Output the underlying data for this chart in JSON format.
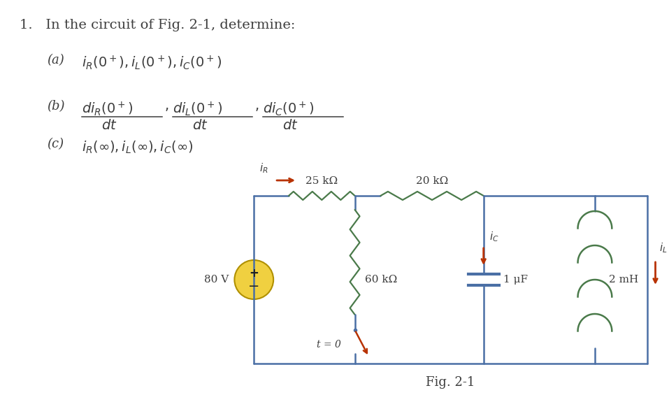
{
  "bg_color": "#ffffff",
  "text_color": "#3d3d3d",
  "circuit_color": "#4a6fa5",
  "resistor_color": "#4a7a4a",
  "component_red": "#b83200",
  "title_text": "1.   In the circuit of Fig. 2-1, determine:",
  "part_a_label": "(a)",
  "part_b_label": "(b)",
  "part_c_label": "(c)",
  "fig_label": "Fig. 2-1",
  "voltage_label": "80 V",
  "r1_label": "25 kΩ",
  "r2_label": "20 kΩ",
  "r3_label": "60 kΩ",
  "cap_label": "1 μF",
  "ind_label": "2 mH",
  "t0_label": "t = 0",
  "iR_label": "i_R",
  "iC_label": "i_C",
  "iL_label": "i_L"
}
